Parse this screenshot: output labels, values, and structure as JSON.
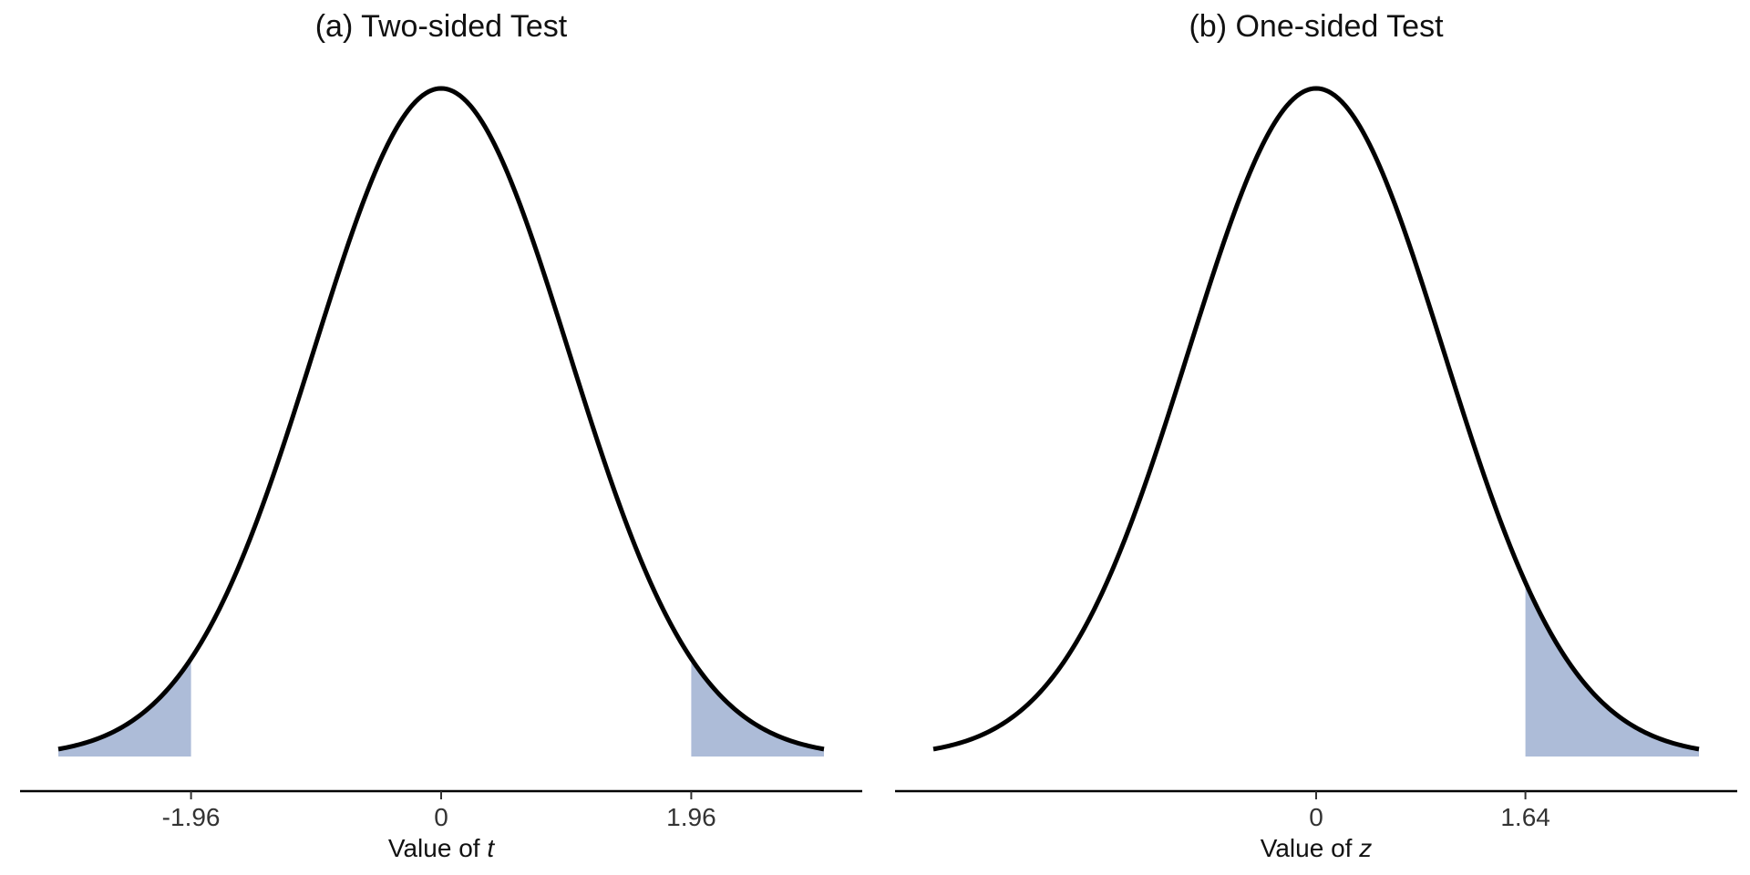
{
  "chart_data": [
    {
      "type": "area",
      "title": "(a) Two-sided Test",
      "xlabel_prefix": "Value of ",
      "xlabel_var": "t",
      "distribution": "standard normal density",
      "x_range": [
        -3,
        3
      ],
      "curve_color": "#000000",
      "shade_color": "#adbcd8",
      "shaded_regions": [
        [
          -3,
          -1.96
        ],
        [
          1.96,
          3
        ]
      ],
      "ticks": [
        {
          "value": -1.96,
          "label": "-1.96"
        },
        {
          "value": 0,
          "label": "0"
        },
        {
          "value": 1.96,
          "label": "1.96"
        }
      ],
      "grid": false
    },
    {
      "type": "area",
      "title": "(b) One-sided Test",
      "xlabel_prefix": "Value of ",
      "xlabel_var": "z",
      "distribution": "standard normal density",
      "x_range": [
        -3,
        3
      ],
      "curve_color": "#000000",
      "shade_color": "#adbcd8",
      "shaded_regions": [
        [
          1.64,
          3
        ]
      ],
      "ticks": [
        {
          "value": 0,
          "label": "0"
        },
        {
          "value": 1.64,
          "label": "1.64"
        }
      ],
      "grid": false
    }
  ]
}
